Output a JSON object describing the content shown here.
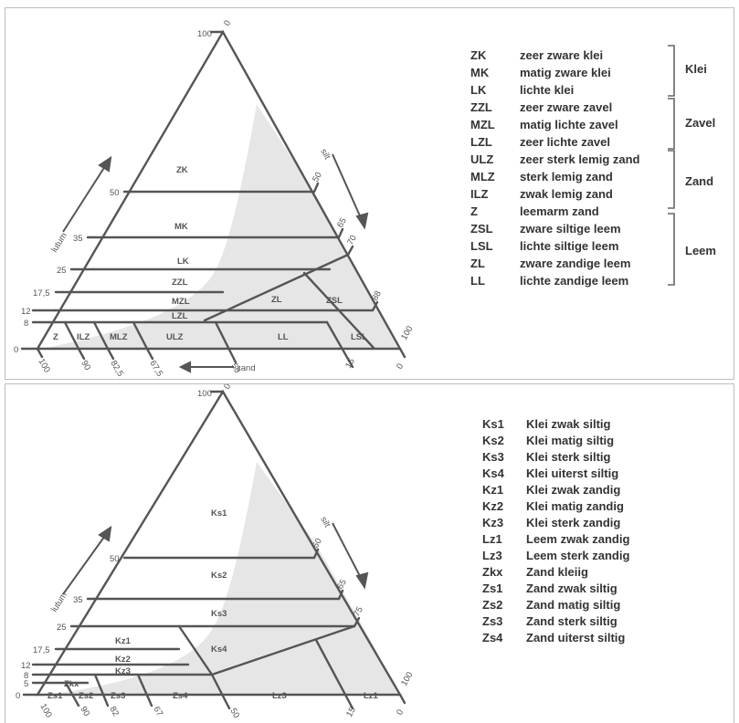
{
  "top": {
    "ticks": {
      "lutum_100": "100",
      "apex_0": "0",
      "lutum_50": "50",
      "lutum_35": "35",
      "lutum_25": "25",
      "lutum_17_5": "17,5",
      "lutum_12": "12",
      "lutum_8": "8",
      "lutum_0": "0",
      "silt_50": "50",
      "silt_65": "65",
      "silt_70": "70",
      "silt_88": "88",
      "silt_100": "100",
      "right_0": "0",
      "zand_100": "100",
      "zand_90": "90",
      "zand_82_5": "82,5",
      "zand_67_5": "67,5",
      "zand_50": "50",
      "zand_15": "15"
    },
    "axes": {
      "lutum": "lutum",
      "silt": "silt",
      "zand": "zand"
    },
    "regions": [
      "ZK",
      "MK",
      "LK",
      "ZZL",
      "MZL",
      "LZL",
      "ZL",
      "ZSL",
      "Z",
      "ILZ",
      "MLZ",
      "ULZ",
      "LL",
      "LSL"
    ],
    "legend": [
      {
        "code": "ZK",
        "desc": "zeer zware klei"
      },
      {
        "code": "MK",
        "desc": "matig zware klei"
      },
      {
        "code": "LK",
        "desc": "lichte klei"
      },
      {
        "code": "ZZL",
        "desc": "zeer zware zavel"
      },
      {
        "code": "MZL",
        "desc": "matig lichte zavel"
      },
      {
        "code": "LZL",
        "desc": "zeer lichte zavel"
      },
      {
        "code": "ULZ",
        "desc": "zeer sterk lemig zand"
      },
      {
        "code": "MLZ",
        "desc": "sterk lemig zand"
      },
      {
        "code": "ILZ",
        "desc": "zwak lemig zand"
      },
      {
        "code": "Z",
        "desc": "leemarm zand"
      },
      {
        "code": "ZSL",
        "desc": "zware siltige leem"
      },
      {
        "code": "LSL",
        "desc": "lichte siltige leem"
      },
      {
        "code": "ZL",
        "desc": "zware zandige leem"
      },
      {
        "code": "LL",
        "desc": "lichte zandige leem"
      }
    ],
    "groups": [
      "Klei",
      "Zavel",
      "Zand",
      "Leem"
    ]
  },
  "bottom": {
    "ticks": {
      "lutum_100": "100",
      "apex_0": "0",
      "lutum_50": "50",
      "lutum_35": "35",
      "lutum_25": "25",
      "lutum_17_5": "17,5",
      "lutum_12": "12",
      "lutum_8": "8",
      "lutum_5": "5",
      "lutum_0": "0",
      "silt_50": "50",
      "silt_65": "65",
      "silt_75": "75",
      "silt_100": "100",
      "right_0": "0",
      "zand_100": "100",
      "zand_90": "90",
      "zand_82": "82",
      "zand_67": "67",
      "zand_50": "50",
      "zand_15": "15"
    },
    "axes": {
      "lutum": "lutum",
      "silt": "silt"
    },
    "regions": [
      "Ks1",
      "Ks2",
      "Ks3",
      "Ks4",
      "Kz1",
      "Kz2",
      "Kz3",
      "Zkx",
      "Zs1",
      "Zs2",
      "Zs3",
      "Zs4",
      "Lz3",
      "Lz1"
    ],
    "legend": [
      {
        "code": "Ks1",
        "desc": "Klei zwak siltig"
      },
      {
        "code": "Ks2",
        "desc": "Klei matig siltig"
      },
      {
        "code": "Ks3",
        "desc": "Klei sterk siltig"
      },
      {
        "code": "Ks4",
        "desc": "Klei uiterst siltig"
      },
      {
        "code": "Kz1",
        "desc": "Klei zwak zandig"
      },
      {
        "code": "Kz2",
        "desc": "Klei matig zandig"
      },
      {
        "code": "Kz3",
        "desc": "Klei sterk zandig"
      },
      {
        "code": "Lz1",
        "desc": "Leem zwak zandig"
      },
      {
        "code": "Lz3",
        "desc": "Leem sterk zandig"
      },
      {
        "code": "Zkx",
        "desc": "Zand kleiig"
      },
      {
        "code": "Zs1",
        "desc": "Zand zwak siltig"
      },
      {
        "code": "Zs2",
        "desc": "Zand matig siltig"
      },
      {
        "code": "Zs3",
        "desc": "Zand sterk siltig"
      },
      {
        "code": "Zs4",
        "desc": "Zand uiterst siltig"
      }
    ]
  },
  "colors": {
    "line": "#555555",
    "shade": "#e8e8e8",
    "text": "#333333"
  }
}
